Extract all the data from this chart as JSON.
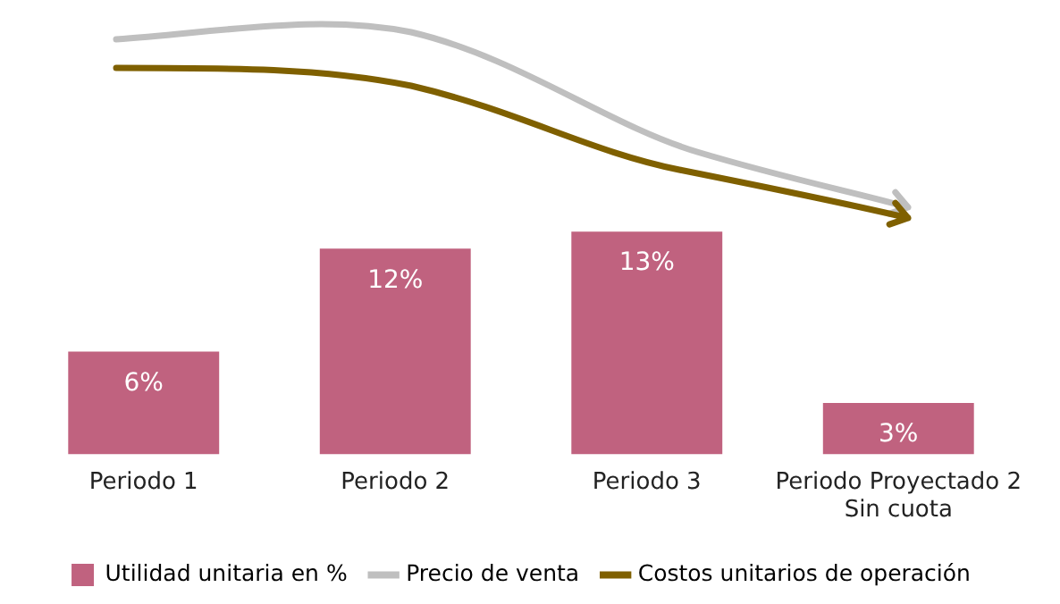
{
  "chart_data": {
    "type": "bar",
    "categories": [
      "Periodo 1",
      "Periodo 2",
      "Periodo 3",
      "Periodo Proyectado 2\nSin cuota"
    ],
    "tick_labels": "x",
    "grid": false,
    "legend": "bottom",
    "series": [
      {
        "name": "Utilidad unitaria en %",
        "color": "#c0627f",
        "values": [
          6,
          12,
          13,
          3
        ],
        "value_labels": [
          "6%",
          "12%",
          "13%",
          "3%"
        ]
      },
      {
        "name": "Precio de venta",
        "type": "line",
        "color": "#bfbfbf",
        "values": [
          null,
          null,
          null,
          null
        ]
      },
      {
        "name": "Costos unitarios de operación",
        "type": "line",
        "color": "#7f6000",
        "values": [
          null,
          null,
          null,
          null
        ]
      }
    ]
  }
}
